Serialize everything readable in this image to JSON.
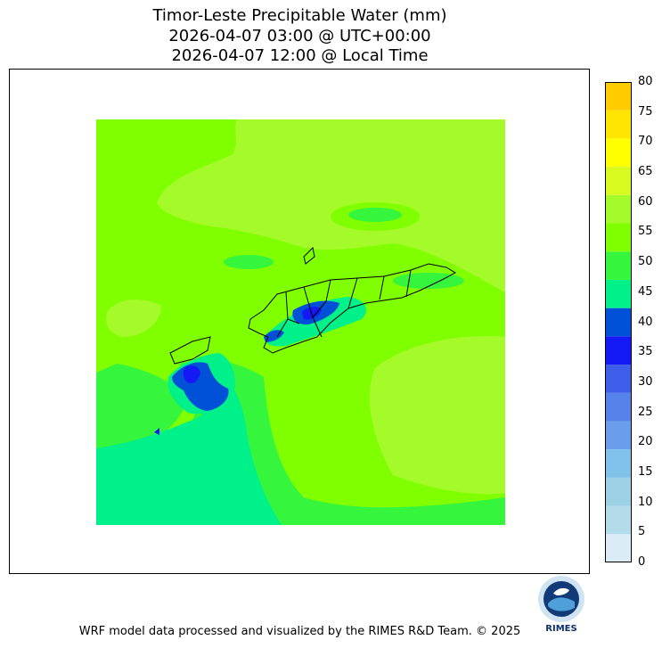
{
  "title_lines": [
    "Timor-Leste Precipitable Water (mm)",
    "2026-04-07 03:00 @ UTC+00:00",
    "2026-04-07 12:00 @ Local Time"
  ],
  "footer": "WRF model data processed and visualized by the RIMES R&D Team. © 2025",
  "logo_text": "RIMES",
  "chart_data": {
    "type": "heatmap",
    "title": "Timor-Leste Precipitable Water (mm)",
    "colorbar": {
      "levels": [
        0,
        5,
        10,
        15,
        20,
        25,
        30,
        35,
        40,
        45,
        50,
        55,
        60,
        65,
        70,
        75,
        80
      ],
      "colors": [
        "#dcecf6",
        "#b4dbea",
        "#9dd1e6",
        "#80c2ea",
        "#6a9eec",
        "#5583ea",
        "#3e5de8",
        "#1419f5",
        "#0050d8",
        "#00f08a",
        "#35f53c",
        "#80ff00",
        "#a5fa2a",
        "#d8fa1e",
        "#ffff00",
        "#ffe600",
        "#ffcc00"
      ]
    },
    "regions": [
      {
        "range": [
          60,
          65
        ],
        "color": "#a5fa2a",
        "area": "northern sea and east / south-east"
      },
      {
        "range": [
          55,
          60
        ],
        "color": "#80ff00",
        "area": "central band, western sea"
      },
      {
        "range": [
          50,
          55
        ],
        "color": "#35f53c",
        "area": "western and southern margins"
      },
      {
        "range": [
          45,
          50
        ],
        "color": "#00f08a",
        "area": "south-west corner, west Timor"
      },
      {
        "range": [
          40,
          45
        ],
        "color": "#0050d8",
        "area": "west Timor interior, central Timor-Leste"
      },
      {
        "range": [
          35,
          40
        ],
        "color": "#1419f5",
        "area": "west Timor core"
      }
    ]
  }
}
